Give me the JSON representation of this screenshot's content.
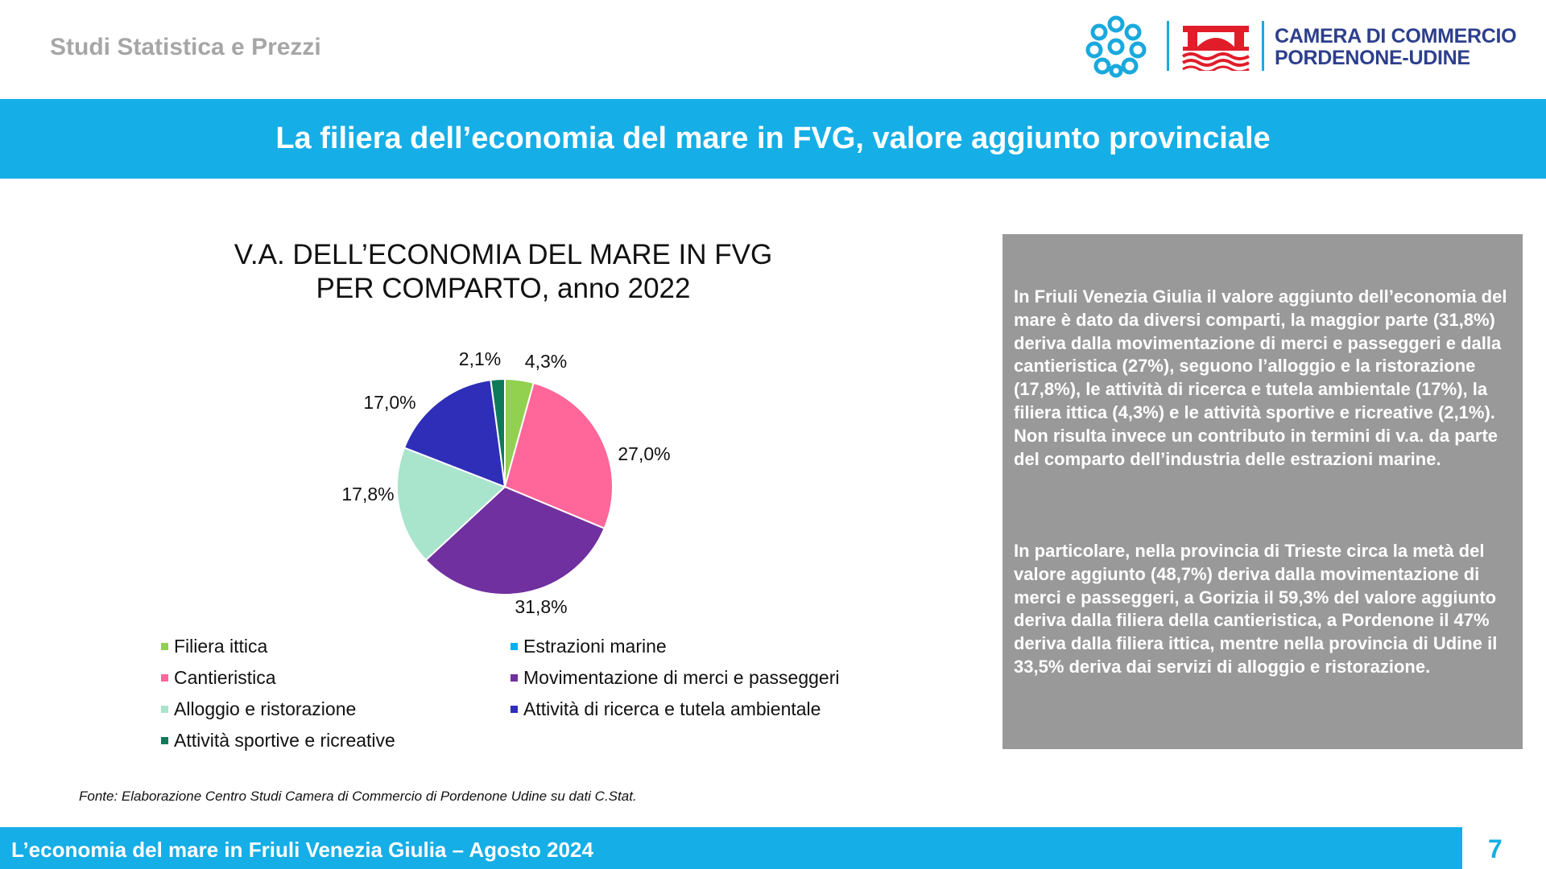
{
  "header": {
    "left_text": "Studi Statistica e Prezzi",
    "logo_line1": "CAMERA DI COMMERCIO",
    "logo_line2": "PORDENONE-UDINE"
  },
  "title": "La filiera dell’economia del mare in FVG, valore aggiunto provinciale",
  "chart_data": {
    "type": "pie",
    "title_line1": "V.A. DELL’ECONOMIA DEL MARE IN FVG",
    "title_line2": "PER COMPARTO, anno 2022",
    "categories": [
      "Filiera ittica",
      "Estrazioni marine",
      "Cantieristica",
      "Movimentazione di merci e passeggeri",
      "Alloggio e ristorazione",
      "Attività di ricerca e tutela ambientale",
      "Attività sportive e ricreative"
    ],
    "values": [
      4.3,
      0,
      27.0,
      31.8,
      17.8,
      17.0,
      2.1
    ],
    "labels": [
      "4,3%",
      "",
      "27,0%",
      "31,8%",
      "17,8%",
      "17,0%",
      "2,1%"
    ],
    "colors": [
      "#92d050",
      "#00b0f0",
      "#ff6699",
      "#7030a0",
      "#a9e4cc",
      "#2e2eb8",
      "#0f7a5a"
    ],
    "legend_position": "bottom"
  },
  "source": "Fonte: Elaborazione Centro Studi Camera di Commercio di Pordenone Udine su dati C.Stat.",
  "text_box": {
    "para1": "In Friuli Venezia Giulia il valore aggiunto dell’economia del mare è dato da diversi comparti, la maggior parte (31,8%) deriva dalla movimentazione di merci e passeggeri e dalla cantieristica (27%), seguono l’alloggio e la ristorazione (17,8%), le attività di ricerca e tutela ambientale (17%), la filiera ittica (4,3%) e le attività sportive e ricreative (2,1%). Non risulta invece un contributo in termini di v.a. da parte del comparto dell’industria delle estrazioni marine.",
    "para2": "In particolare, nella provincia di Trieste circa la metà del valore aggiunto (48,7%) deriva dalla movimentazione di merci e passeggeri, a Gorizia il 59,3% del valore aggiunto deriva dalla filiera della cantieristica, a Pordenone il 47% deriva dalla filiera ittica, mentre nella provincia di Udine il 33,5% deriva dai servizi di alloggio e ristorazione."
  },
  "footer": {
    "text": "L’economia del mare in Friuli Venezia Giulia – Agosto 2024",
    "page_number": "7"
  }
}
